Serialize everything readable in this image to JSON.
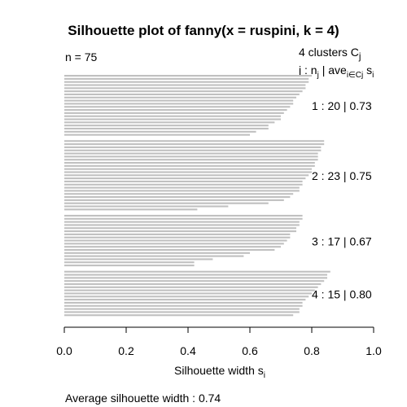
{
  "chart_data": {
    "type": "bar",
    "orientation": "horizontal",
    "title": "Silhouette plot of fanny(x = ruspini, k = 4)",
    "n_label": "n = 75",
    "legend_title_prefix": "4  clusters  C",
    "legend_title_sub": "j",
    "legend_header_j": "j :  n",
    "legend_header_j_sub": "j",
    "legend_header_ave": " | ave",
    "legend_header_ave_sub": "i∈Cj",
    "legend_header_s": " s",
    "legend_header_s_sub": "i",
    "xlabel": "Silhouette width s",
    "xlabel_sub": "i",
    "xlim": [
      0,
      1
    ],
    "xticks": [
      "0.0",
      "0.2",
      "0.4",
      "0.6",
      "0.8",
      "1.0"
    ],
    "bar_color": "#c0c0c0",
    "average_label": "Average silhouette width :  0.74",
    "clusters": [
      {
        "label": "1 :   20  |  0.73",
        "values": [
          0.8,
          0.79,
          0.79,
          0.78,
          0.78,
          0.77,
          0.76,
          0.75,
          0.74,
          0.74,
          0.73,
          0.72,
          0.71,
          0.7,
          0.7,
          0.68,
          0.66,
          0.66,
          0.62,
          0.6
        ]
      },
      {
        "label": "2 :   23  |  0.75",
        "values": [
          0.84,
          0.84,
          0.83,
          0.83,
          0.82,
          0.82,
          0.82,
          0.81,
          0.81,
          0.8,
          0.8,
          0.79,
          0.78,
          0.77,
          0.77,
          0.76,
          0.76,
          0.74,
          0.73,
          0.71,
          0.66,
          0.53,
          0.43
        ]
      },
      {
        "label": "3 :   17  |  0.67",
        "values": [
          0.77,
          0.77,
          0.76,
          0.76,
          0.75,
          0.75,
          0.73,
          0.73,
          0.72,
          0.71,
          0.7,
          0.68,
          0.6,
          0.58,
          0.48,
          0.42,
          0.42
        ]
      },
      {
        "label": "4 :   15  |  0.80",
        "values": [
          0.86,
          0.85,
          0.85,
          0.84,
          0.83,
          0.82,
          0.81,
          0.8,
          0.79,
          0.78,
          0.77,
          0.77,
          0.76,
          0.76,
          0.74
        ]
      }
    ]
  }
}
